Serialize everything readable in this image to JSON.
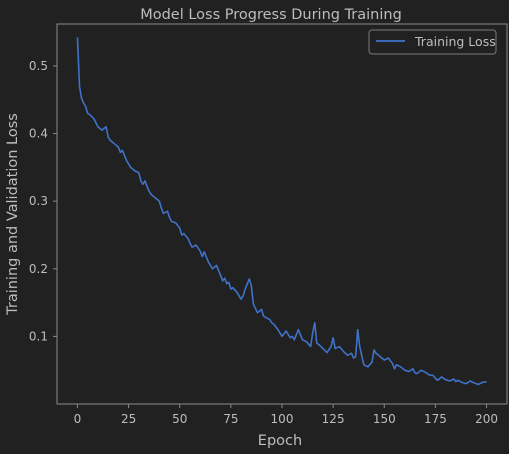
{
  "chart_data": {
    "type": "line",
    "title": "Model Loss Progress During Training",
    "xlabel": "Epoch",
    "ylabel": "Training and Validation Loss",
    "xlim": [
      -10,
      210
    ],
    "ylim": [
      0.0,
      0.562
    ],
    "xticks": [
      0,
      25,
      50,
      75,
      100,
      125,
      150,
      175,
      200
    ],
    "yticks": [
      0.1,
      0.2,
      0.3,
      0.4,
      0.5
    ],
    "grid": false,
    "legend_position": "top-right",
    "series": [
      {
        "name": "Training Loss",
        "color": "#3f72c9",
        "x": [
          0,
          1,
          2,
          3,
          4,
          5,
          6,
          8,
          10,
          12,
          14,
          15,
          16,
          18,
          20,
          21,
          22,
          24,
          25,
          26,
          28,
          30,
          31,
          32,
          33,
          34,
          35,
          36,
          38,
          40,
          41,
          42,
          44,
          45,
          46,
          48,
          50,
          51,
          52,
          54,
          55,
          56,
          58,
          60,
          61,
          62,
          64,
          65,
          66,
          68,
          70,
          71,
          72,
          73,
          74,
          75,
          76,
          78,
          80,
          81,
          82,
          84,
          85,
          86,
          88,
          90,
          91,
          92,
          94,
          95,
          96,
          98,
          100,
          102,
          104,
          105,
          106,
          108,
          110,
          112,
          114,
          115,
          116,
          117,
          118,
          120,
          122,
          124,
          125,
          126,
          128,
          130,
          132,
          134,
          135,
          136,
          137,
          138,
          140,
          142,
          144,
          145,
          146,
          148,
          150,
          152,
          154,
          155,
          156,
          158,
          160,
          162,
          164,
          165,
          166,
          168,
          170,
          172,
          174,
          175,
          176,
          178,
          180,
          182,
          184,
          185,
          186,
          188,
          190,
          192,
          194,
          195,
          196,
          198,
          200
        ],
        "values": [
          0.542,
          0.47,
          0.452,
          0.445,
          0.44,
          0.43,
          0.428,
          0.422,
          0.41,
          0.405,
          0.41,
          0.395,
          0.39,
          0.385,
          0.38,
          0.372,
          0.375,
          0.36,
          0.355,
          0.35,
          0.345,
          0.342,
          0.33,
          0.325,
          0.33,
          0.322,
          0.315,
          0.31,
          0.305,
          0.3,
          0.29,
          0.282,
          0.285,
          0.276,
          0.27,
          0.268,
          0.26,
          0.25,
          0.252,
          0.245,
          0.238,
          0.232,
          0.235,
          0.226,
          0.218,
          0.225,
          0.21,
          0.205,
          0.2,
          0.205,
          0.19,
          0.182,
          0.186,
          0.178,
          0.18,
          0.17,
          0.172,
          0.165,
          0.155,
          0.16,
          0.17,
          0.185,
          0.175,
          0.148,
          0.135,
          0.14,
          0.13,
          0.128,
          0.125,
          0.12,
          0.118,
          0.11,
          0.1,
          0.108,
          0.098,
          0.1,
          0.095,
          0.11,
          0.095,
          0.092,
          0.085,
          0.105,
          0.12,
          0.09,
          0.088,
          0.082,
          0.076,
          0.085,
          0.098,
          0.082,
          0.085,
          0.078,
          0.072,
          0.075,
          0.068,
          0.07,
          0.11,
          0.085,
          0.058,
          0.055,
          0.062,
          0.08,
          0.075,
          0.07,
          0.065,
          0.068,
          0.06,
          0.052,
          0.058,
          0.055,
          0.05,
          0.048,
          0.052,
          0.046,
          0.045,
          0.05,
          0.047,
          0.043,
          0.042,
          0.038,
          0.035,
          0.04,
          0.036,
          0.034,
          0.037,
          0.033,
          0.035,
          0.032,
          0.03,
          0.034,
          0.031,
          0.03,
          0.029,
          0.032,
          0.033
        ]
      }
    ]
  }
}
